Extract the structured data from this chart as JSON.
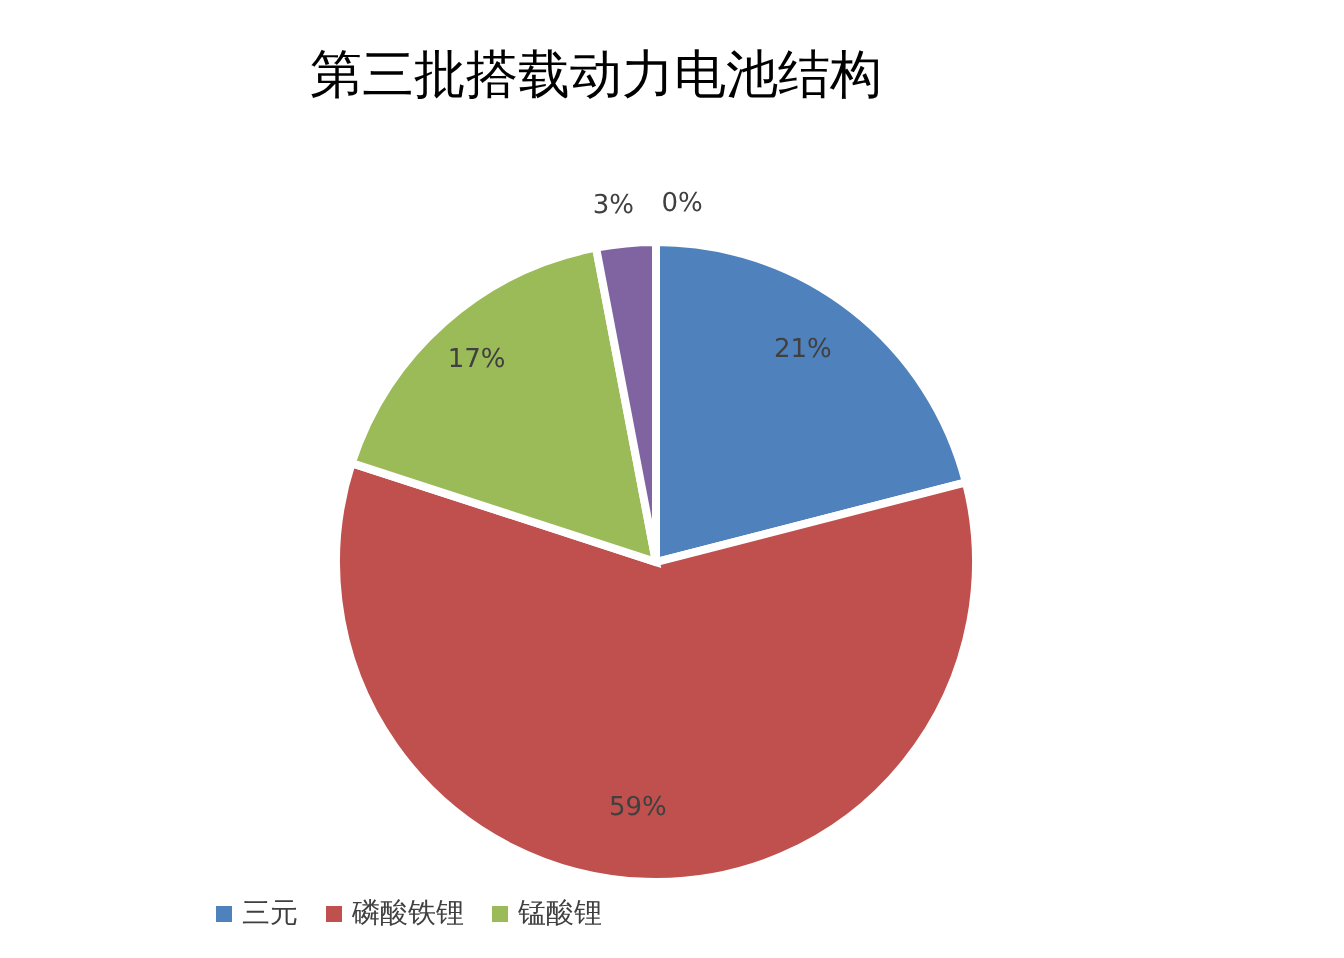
{
  "chart_data": {
    "type": "pie",
    "title": "第三批搭载动力电池结构",
    "categories": [
      "三元",
      "磷酸铁锂",
      "锰酸锂",
      null,
      null
    ],
    "values": [
      21,
      59,
      17,
      3,
      0
    ],
    "value_labels": [
      "21%",
      "59%",
      "17%",
      "3%",
      "0%"
    ],
    "colors": [
      "#4f81bd",
      "#c0504d",
      "#9bbb59",
      "#8064a2",
      "#4bacc6"
    ],
    "legend": "bottom"
  }
}
